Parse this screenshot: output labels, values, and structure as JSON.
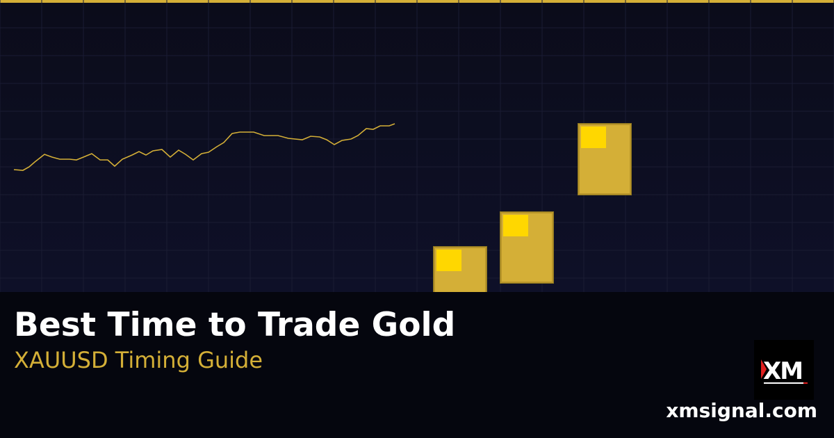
{
  "banner": {
    "title": "Best Time to Trade Gold",
    "subtitle": "XAUUSD Timing Guide",
    "website": "xmsignal.com",
    "logo_text": "XM"
  },
  "colors": {
    "accent_gold": "#d4af37",
    "highlight_gold": "#ffd700",
    "background": "#0b0c1c",
    "panel": "#05060e",
    "logo_red": "#e02020"
  }
}
